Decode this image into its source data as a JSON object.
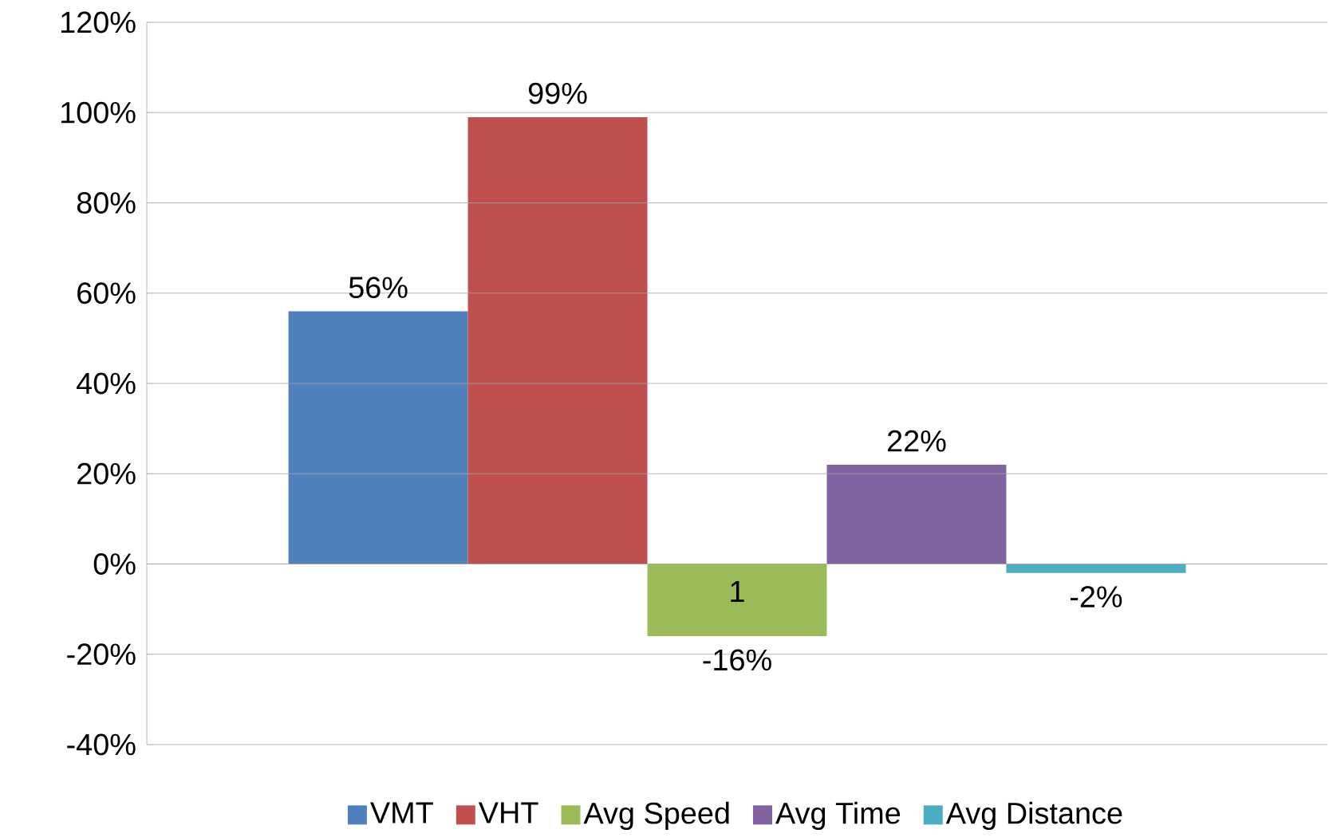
{
  "chart_data": {
    "type": "bar",
    "categories": [
      "1"
    ],
    "series": [
      {
        "name": "VMT",
        "color": "#4f81bd",
        "values": [
          56
        ],
        "value_labels": [
          "56%"
        ]
      },
      {
        "name": "VHT",
        "color": "#c0504d",
        "values": [
          99
        ],
        "value_labels": [
          "99%"
        ]
      },
      {
        "name": "Avg Speed",
        "color": "#9bbb59",
        "values": [
          -16
        ],
        "value_labels": [
          "-16%"
        ]
      },
      {
        "name": "Avg Time",
        "color": "#8064a2",
        "values": [
          22
        ],
        "value_labels": [
          "22%"
        ]
      },
      {
        "name": "Avg Distance",
        "color": "#4bacc6",
        "values": [
          -2
        ],
        "value_labels": [
          "-2%"
        ]
      }
    ],
    "ylim": [
      -40,
      120
    ],
    "yticks": [
      {
        "value": -40,
        "label": "-40%"
      },
      {
        "value": -20,
        "label": "-20%"
      },
      {
        "value": 0,
        "label": "0%"
      },
      {
        "value": 20,
        "label": "20%"
      },
      {
        "value": 40,
        "label": "40%"
      },
      {
        "value": 60,
        "label": "60%"
      },
      {
        "value": 80,
        "label": "80%"
      },
      {
        "value": 100,
        "label": "100%"
      },
      {
        "value": 120,
        "label": "120%"
      }
    ],
    "grid": "y",
    "legend": "bottom"
  }
}
